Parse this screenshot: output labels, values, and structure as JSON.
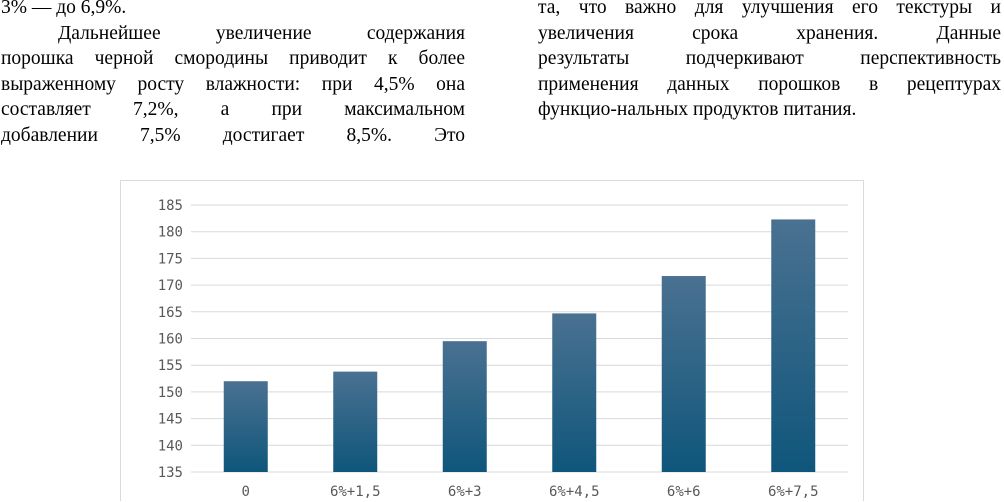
{
  "text": {
    "left_column": [
      "3% — до 6,9%.",
      "Дальнейшее увеличение содержания",
      "порошка черной смородины приводит к более",
      "выраженному росту влажности: при 4,5% она",
      "составляет 7,2%, а при максимальном",
      "добавлении 7,5% достигает 8,5%. Это"
    ],
    "right_column": [
      "та, что важно для улучшения его текстуры и",
      "увеличения срока хранения. Данные",
      "результаты подчеркивают перспективность",
      "применения данных порошков в рецептурах",
      "функцио-нальных продуктов питания."
    ]
  },
  "chart_data": {
    "type": "bar",
    "categories": [
      "0",
      "6%+1,5",
      "6%+3",
      "6%+4,5",
      "6%+6",
      "6%+7,5"
    ],
    "values": [
      152,
      153.8,
      159.5,
      164.7,
      171.7,
      182.3
    ],
    "y_ticks": [
      "135",
      "140",
      "145",
      "150",
      "155",
      "160",
      "165",
      "170",
      "175",
      "180",
      "185"
    ],
    "ylim": [
      135,
      185
    ],
    "grid": true,
    "colors": {
      "bar_top": "#4a7191",
      "bar_bottom": "#0f567b",
      "grid": "#d9d9d9",
      "tick_text": "#595959"
    }
  }
}
